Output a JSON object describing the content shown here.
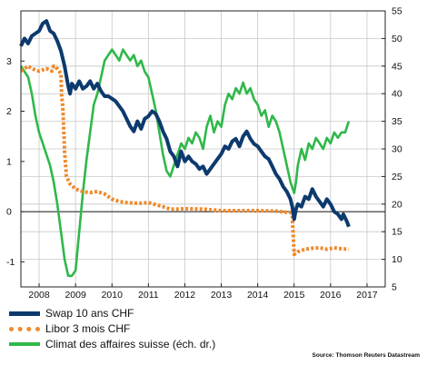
{
  "chart_data": {
    "type": "line",
    "x_ticks": [
      "2008",
      "2009",
      "2010",
      "2011",
      "2012",
      "2013",
      "2014",
      "2015",
      "2016",
      "2017"
    ],
    "xlim": [
      2007.5,
      2017.5
    ],
    "y_left": {
      "lim": [
        -1.5,
        4.0
      ],
      "ticks": [
        -1,
        0,
        1,
        2,
        3
      ],
      "tick_labels": [
        "-1",
        "0",
        "1",
        "2",
        "3"
      ]
    },
    "y_right": {
      "lim": [
        5,
        55
      ],
      "ticks": [
        5,
        10,
        15,
        20,
        25,
        30,
        35,
        40,
        45,
        50,
        55
      ],
      "tick_labels": [
        "5",
        "10",
        "15",
        "20",
        "25",
        "30",
        "35",
        "40",
        "45",
        "50",
        "55"
      ]
    },
    "grid": true,
    "legend_position": "bottom-left",
    "colors": {
      "swap": "#0d3a6e",
      "libor": "#f08a2b",
      "climat": "#2fb84a"
    },
    "series": [
      {
        "name": "Swap 10 ans CHF",
        "axis": "left",
        "style": "solid",
        "points": [
          [
            2007.5,
            3.3
          ],
          [
            2007.6,
            3.45
          ],
          [
            2007.7,
            3.35
          ],
          [
            2007.8,
            3.5
          ],
          [
            2007.9,
            3.55
          ],
          [
            2008.0,
            3.6
          ],
          [
            2008.1,
            3.75
          ],
          [
            2008.2,
            3.8
          ],
          [
            2008.3,
            3.6
          ],
          [
            2008.4,
            3.55
          ],
          [
            2008.5,
            3.4
          ],
          [
            2008.6,
            3.2
          ],
          [
            2008.7,
            2.9
          ],
          [
            2008.8,
            2.5
          ],
          [
            2008.85,
            2.35
          ],
          [
            2008.9,
            2.55
          ],
          [
            2009.0,
            2.45
          ],
          [
            2009.1,
            2.6
          ],
          [
            2009.2,
            2.45
          ],
          [
            2009.3,
            2.5
          ],
          [
            2009.4,
            2.6
          ],
          [
            2009.5,
            2.45
          ],
          [
            2009.6,
            2.55
          ],
          [
            2009.7,
            2.4
          ],
          [
            2009.8,
            2.3
          ],
          [
            2009.9,
            2.3
          ],
          [
            2010.0,
            2.25
          ],
          [
            2010.1,
            2.2
          ],
          [
            2010.2,
            2.1
          ],
          [
            2010.3,
            2.0
          ],
          [
            2010.4,
            1.85
          ],
          [
            2010.5,
            1.7
          ],
          [
            2010.6,
            1.6
          ],
          [
            2010.7,
            1.8
          ],
          [
            2010.8,
            1.65
          ],
          [
            2010.9,
            1.85
          ],
          [
            2011.0,
            1.9
          ],
          [
            2011.1,
            2.0
          ],
          [
            2011.2,
            1.95
          ],
          [
            2011.3,
            1.8
          ],
          [
            2011.4,
            1.6
          ],
          [
            2011.5,
            1.45
          ],
          [
            2011.6,
            1.2
          ],
          [
            2011.7,
            1.1
          ],
          [
            2011.8,
            0.9
          ],
          [
            2011.9,
            1.2
          ],
          [
            2012.0,
            1.0
          ],
          [
            2012.1,
            1.1
          ],
          [
            2012.2,
            1.0
          ],
          [
            2012.3,
            0.95
          ],
          [
            2012.4,
            0.85
          ],
          [
            2012.5,
            0.9
          ],
          [
            2012.6,
            0.75
          ],
          [
            2012.7,
            0.85
          ],
          [
            2012.8,
            0.95
          ],
          [
            2012.9,
            1.05
          ],
          [
            2013.0,
            1.15
          ],
          [
            2013.1,
            1.3
          ],
          [
            2013.2,
            1.25
          ],
          [
            2013.3,
            1.4
          ],
          [
            2013.4,
            1.45
          ],
          [
            2013.5,
            1.3
          ],
          [
            2013.6,
            1.5
          ],
          [
            2013.7,
            1.6
          ],
          [
            2013.8,
            1.45
          ],
          [
            2013.9,
            1.35
          ],
          [
            2014.0,
            1.3
          ],
          [
            2014.1,
            1.2
          ],
          [
            2014.2,
            1.1
          ],
          [
            2014.3,
            1.05
          ],
          [
            2014.4,
            0.9
          ],
          [
            2014.5,
            0.75
          ],
          [
            2014.6,
            0.65
          ],
          [
            2014.7,
            0.5
          ],
          [
            2014.8,
            0.4
          ],
          [
            2014.9,
            0.25
          ],
          [
            2014.95,
            0.1
          ],
          [
            2015.0,
            -0.15
          ],
          [
            2015.05,
            0.05
          ],
          [
            2015.1,
            0.15
          ],
          [
            2015.2,
            0.1
          ],
          [
            2015.3,
            0.3
          ],
          [
            2015.4,
            0.25
          ],
          [
            2015.5,
            0.45
          ],
          [
            2015.6,
            0.3
          ],
          [
            2015.7,
            0.2
          ],
          [
            2015.8,
            0.1
          ],
          [
            2015.9,
            0.25
          ],
          [
            2016.0,
            0.15
          ],
          [
            2016.1,
            0.0
          ],
          [
            2016.2,
            -0.05
          ],
          [
            2016.3,
            -0.15
          ],
          [
            2016.35,
            -0.05
          ],
          [
            2016.45,
            -0.2
          ],
          [
            2016.5,
            -0.3
          ]
        ]
      },
      {
        "name": "Libor 3 mois CHF",
        "axis": "left",
        "style": "dotted",
        "points": [
          [
            2007.5,
            2.8
          ],
          [
            2007.6,
            2.85
          ],
          [
            2007.7,
            2.9
          ],
          [
            2007.8,
            2.85
          ],
          [
            2008.0,
            2.8
          ],
          [
            2008.2,
            2.85
          ],
          [
            2008.35,
            2.8
          ],
          [
            2008.4,
            2.9
          ],
          [
            2008.5,
            2.85
          ],
          [
            2008.6,
            2.75
          ],
          [
            2008.62,
            2.3
          ],
          [
            2008.65,
            2.1
          ],
          [
            2008.7,
            1.2
          ],
          [
            2008.75,
            0.7
          ],
          [
            2008.85,
            0.55
          ],
          [
            2009.0,
            0.45
          ],
          [
            2009.2,
            0.4
          ],
          [
            2009.4,
            0.38
          ],
          [
            2009.6,
            0.4
          ],
          [
            2009.8,
            0.35
          ],
          [
            2010.0,
            0.25
          ],
          [
            2010.2,
            0.2
          ],
          [
            2010.4,
            0.18
          ],
          [
            2010.6,
            0.17
          ],
          [
            2010.8,
            0.17
          ],
          [
            2011.0,
            0.18
          ],
          [
            2011.2,
            0.14
          ],
          [
            2011.4,
            0.1
          ],
          [
            2011.6,
            0.05
          ],
          [
            2011.8,
            0.05
          ],
          [
            2012.0,
            0.06
          ],
          [
            2012.5,
            0.05
          ],
          [
            2013.0,
            0.02
          ],
          [
            2013.5,
            0.02
          ],
          [
            2014.0,
            0.02
          ],
          [
            2014.5,
            0.01
          ],
          [
            2014.9,
            -0.02
          ],
          [
            2014.95,
            -0.1
          ],
          [
            2015.0,
            -0.85
          ],
          [
            2015.1,
            -0.8
          ],
          [
            2015.3,
            -0.75
          ],
          [
            2015.5,
            -0.73
          ],
          [
            2015.7,
            -0.72
          ],
          [
            2015.9,
            -0.75
          ],
          [
            2016.1,
            -0.72
          ],
          [
            2016.3,
            -0.74
          ],
          [
            2016.5,
            -0.75
          ]
        ]
      },
      {
        "name": "Climat des affaires suisse (éch. dr.)",
        "axis": "right",
        "style": "solid",
        "points": [
          [
            2007.5,
            45
          ],
          [
            2007.6,
            44
          ],
          [
            2007.7,
            43
          ],
          [
            2007.8,
            40
          ],
          [
            2007.9,
            36
          ],
          [
            2008.0,
            33
          ],
          [
            2008.1,
            31
          ],
          [
            2008.2,
            29
          ],
          [
            2008.3,
            27
          ],
          [
            2008.4,
            24
          ],
          [
            2008.5,
            20
          ],
          [
            2008.6,
            15
          ],
          [
            2008.7,
            10
          ],
          [
            2008.8,
            7
          ],
          [
            2008.9,
            7
          ],
          [
            2009.0,
            8
          ],
          [
            2009.1,
            15
          ],
          [
            2009.2,
            22
          ],
          [
            2009.3,
            28
          ],
          [
            2009.4,
            33
          ],
          [
            2009.5,
            38
          ],
          [
            2009.6,
            40
          ],
          [
            2009.7,
            43
          ],
          [
            2009.8,
            46
          ],
          [
            2009.9,
            47
          ],
          [
            2010.0,
            48
          ],
          [
            2010.1,
            47
          ],
          [
            2010.2,
            46
          ],
          [
            2010.3,
            48
          ],
          [
            2010.4,
            47
          ],
          [
            2010.5,
            46
          ],
          [
            2010.6,
            47
          ],
          [
            2010.7,
            45
          ],
          [
            2010.8,
            46
          ],
          [
            2010.9,
            44
          ],
          [
            2011.0,
            43
          ],
          [
            2011.1,
            40
          ],
          [
            2011.2,
            37
          ],
          [
            2011.3,
            33
          ],
          [
            2011.4,
            29
          ],
          [
            2011.5,
            26
          ],
          [
            2011.6,
            25
          ],
          [
            2011.7,
            27
          ],
          [
            2011.8,
            29
          ],
          [
            2011.9,
            31
          ],
          [
            2012.0,
            30
          ],
          [
            2012.1,
            32
          ],
          [
            2012.2,
            31
          ],
          [
            2012.3,
            33
          ],
          [
            2012.4,
            32
          ],
          [
            2012.5,
            30
          ],
          [
            2012.6,
            34
          ],
          [
            2012.7,
            36
          ],
          [
            2012.8,
            33
          ],
          [
            2012.9,
            35
          ],
          [
            2013.0,
            34
          ],
          [
            2013.1,
            38
          ],
          [
            2013.2,
            40
          ],
          [
            2013.3,
            39
          ],
          [
            2013.4,
            41
          ],
          [
            2013.5,
            40
          ],
          [
            2013.6,
            42
          ],
          [
            2013.7,
            40
          ],
          [
            2013.8,
            41
          ],
          [
            2013.9,
            39
          ],
          [
            2014.0,
            38
          ],
          [
            2014.1,
            36
          ],
          [
            2014.2,
            37
          ],
          [
            2014.3,
            34
          ],
          [
            2014.4,
            36
          ],
          [
            2014.5,
            35
          ],
          [
            2014.6,
            33
          ],
          [
            2014.7,
            30
          ],
          [
            2014.8,
            27
          ],
          [
            2014.9,
            24
          ],
          [
            2015.0,
            22
          ],
          [
            2015.05,
            24
          ],
          [
            2015.1,
            27
          ],
          [
            2015.2,
            30
          ],
          [
            2015.3,
            28
          ],
          [
            2015.4,
            31
          ],
          [
            2015.5,
            30
          ],
          [
            2015.6,
            32
          ],
          [
            2015.7,
            31
          ],
          [
            2015.8,
            30
          ],
          [
            2015.9,
            32
          ],
          [
            2016.0,
            31
          ],
          [
            2016.1,
            33
          ],
          [
            2016.2,
            32
          ],
          [
            2016.3,
            33
          ],
          [
            2016.4,
            33
          ],
          [
            2016.5,
            35
          ]
        ]
      }
    ]
  },
  "legend": {
    "items": [
      {
        "label": "Swap 10 ans CHF",
        "color": "#0d3a6e",
        "style": "solid"
      },
      {
        "label": "Libor 3 mois CHF",
        "color": "#f08a2b",
        "style": "dotted"
      },
      {
        "label": "Climat des affaires suisse (éch. dr.)",
        "color": "#2fb84a",
        "style": "solid"
      }
    ]
  },
  "source": "Source: Thomson Reuters Datastream"
}
